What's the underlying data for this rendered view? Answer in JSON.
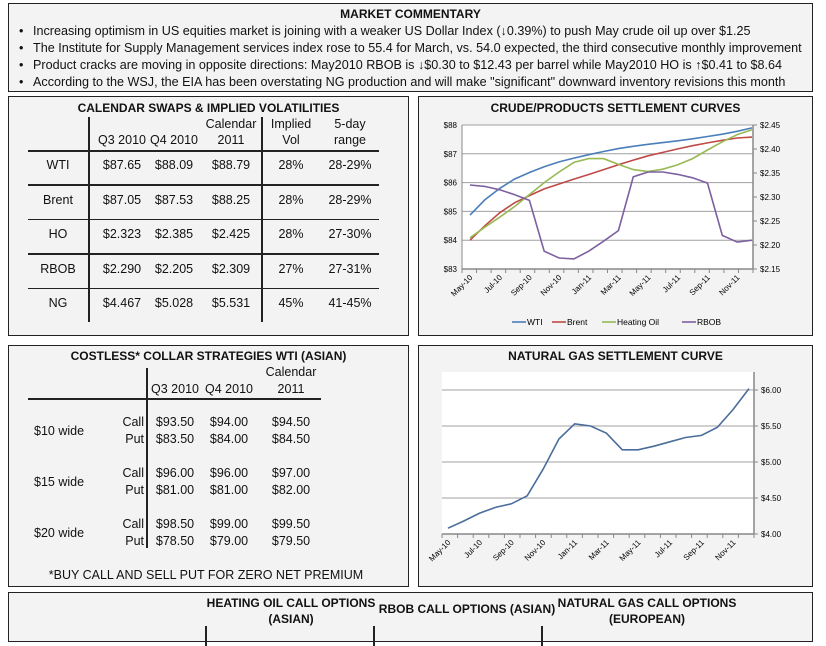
{
  "commentary": {
    "title": "MARKET COMMENTARY",
    "bullets": [
      "Increasing optimism in US equities market is joining with a weaker US Dollar Index (↓0.39%) to push May crude oil up over $1.25",
      "The Institute for Supply Management services index rose to 55.4 for March, vs. 54.0 expected, the third consecutive monthly improvement",
      "Product cracks are moving in opposite directions: May2010 RBOB is ↓$0.30 to $12.43 per barrel while May2010 HO is ↑$0.41 to $8.64",
      "According to the WSJ, the EIA has been overstating NG production and will make \"significant\" downward inventory revisions this month"
    ]
  },
  "swaps": {
    "title": "CALENDAR SWAPS & IMPLIED VOLATILITIES",
    "headers": [
      [
        "",
        "Q3 2010"
      ],
      [
        "",
        "Q4 2010"
      ],
      [
        "Calendar",
        "2011"
      ],
      [
        "Implied",
        "Vol"
      ],
      [
        "5-day",
        "range"
      ]
    ],
    "rows": [
      {
        "label": "WTI",
        "values": [
          "$87.65",
          "$88.09",
          "$88.79",
          "28%",
          "28-29%"
        ]
      },
      {
        "label": "Brent",
        "values": [
          "$87.05",
          "$87.53",
          "$88.25",
          "28%",
          "28-29%"
        ]
      },
      {
        "label": "HO",
        "values": [
          "$2.323",
          "$2.385",
          "$2.425",
          "28%",
          "27-30%"
        ]
      },
      {
        "label": "RBOB",
        "values": [
          "$2.290",
          "$2.205",
          "$2.309",
          "27%",
          "27-31%"
        ]
      },
      {
        "label": "NG",
        "values": [
          "$4.467",
          "$5.028",
          "$5.531",
          "45%",
          "41-45%"
        ]
      }
    ]
  },
  "collar": {
    "title": "COSTLESS* COLLAR STRATEGIES WTI (ASIAN)",
    "headers": [
      [
        "",
        "Q3 2010"
      ],
      [
        "",
        "Q4 2010"
      ],
      [
        "Calendar",
        "2011"
      ]
    ],
    "groups": [
      {
        "label": "$10 wide",
        "call_label": "Call",
        "put_label": "Put",
        "call": [
          "$93.50",
          "$94.00",
          "$94.50"
        ],
        "put": [
          "$83.50",
          "$84.00",
          "$84.50"
        ]
      },
      {
        "label": "$15 wide",
        "call_label": "Call",
        "put_label": "Put",
        "call": [
          "$96.00",
          "$96.00",
          "$97.00"
        ],
        "put": [
          "$81.00",
          "$81.00",
          "$82.00"
        ]
      },
      {
        "label": "$20 wide",
        "call_label": "Call",
        "put_label": "Put",
        "call": [
          "$98.50",
          "$99.00",
          "$99.50"
        ],
        "put": [
          "$78.50",
          "$79.00",
          "$79.50"
        ]
      }
    ],
    "footnote": "*BUY CALL AND SELL PUT FOR ZERO NET PREMIUM"
  },
  "options": {
    "ho_title": [
      "HEATING OIL CALL OPTIONS",
      "(ASIAN)"
    ],
    "rbob_title": [
      "RBOB CALL OPTIONS (ASIAN)"
    ],
    "ng_title": [
      "NATURAL GAS CALL OPTIONS",
      "(EUROPEAN)"
    ]
  },
  "chart_data": [
    {
      "type": "line",
      "title": "CRUDE/PRODUCTS SETTLEMENT CURVES",
      "x": [
        "May-10",
        "Jun-10",
        "Jul-10",
        "Aug-10",
        "Sep-10",
        "Oct-10",
        "Nov-10",
        "Dec-10",
        "Jan-11",
        "Feb-11",
        "Mar-11",
        "Apr-11",
        "May-11",
        "Jun-11",
        "Jul-11",
        "Aug-11",
        "Sep-11",
        "Oct-11",
        "Nov-11",
        "Dec-11"
      ],
      "x_tick_labels": [
        "May-10",
        "Jul-10",
        "Sep-10",
        "Nov-10",
        "Jan-11",
        "Mar-11",
        "May-11",
        "Jul-11",
        "Sep-11",
        "Nov-11"
      ],
      "ylim_left": [
        83,
        88
      ],
      "y_ticks_left": [
        "$83",
        "$84",
        "$85",
        "$86",
        "$87",
        "$88"
      ],
      "ylim_right": [
        2.15,
        2.45
      ],
      "y_ticks_right": [
        "$2.15",
        "$2.20",
        "$2.25",
        "$2.30",
        "$2.35",
        "$2.40",
        "$2.45"
      ],
      "grid": true,
      "legend": "bottom",
      "series": [
        {
          "name": "WTI",
          "axis": "left",
          "color": "#4a7ebb",
          "values": [
            84.87,
            85.4,
            85.8,
            86.12,
            86.35,
            86.55,
            86.72,
            86.85,
            86.97,
            87.08,
            87.18,
            87.26,
            87.33,
            87.39,
            87.45,
            87.52,
            87.6,
            87.68,
            87.78,
            87.9
          ]
        },
        {
          "name": "Brent",
          "axis": "left",
          "color": "#be4b48",
          "values": [
            84.0,
            84.5,
            84.95,
            85.3,
            85.55,
            85.78,
            85.95,
            86.12,
            86.28,
            86.45,
            86.62,
            86.78,
            86.93,
            87.05,
            87.17,
            87.28,
            87.38,
            87.47,
            87.55,
            87.58
          ]
        },
        {
          "name": "Heating Oil",
          "axis": "right",
          "color": "#98b954",
          "values": [
            2.215,
            2.237,
            2.258,
            2.28,
            2.305,
            2.33,
            2.352,
            2.372,
            2.38,
            2.38,
            2.368,
            2.357,
            2.353,
            2.358,
            2.367,
            2.38,
            2.398,
            2.415,
            2.43,
            2.44
          ]
        },
        {
          "name": "RBOB",
          "axis": "right",
          "color": "#7d60a0",
          "values": [
            2.325,
            2.322,
            2.315,
            2.305,
            2.293,
            2.187,
            2.173,
            2.171,
            2.187,
            2.208,
            2.23,
            2.342,
            2.352,
            2.352,
            2.347,
            2.34,
            2.329,
            2.22,
            2.206,
            2.21
          ]
        }
      ]
    },
    {
      "type": "line",
      "title": "NATURAL GAS SETTLEMENT CURVE",
      "x": [
        "May-10",
        "Jun-10",
        "Jul-10",
        "Aug-10",
        "Sep-10",
        "Oct-10",
        "Nov-10",
        "Dec-10",
        "Jan-11",
        "Feb-11",
        "Mar-11",
        "Apr-11",
        "May-11",
        "Jun-11",
        "Jul-11",
        "Aug-11",
        "Sep-11",
        "Oct-11",
        "Nov-11",
        "Dec-11"
      ],
      "x_tick_labels": [
        "May-10",
        "Jul-10",
        "Sep-10",
        "Nov-10",
        "Jan-11",
        "Mar-11",
        "May-11",
        "Jul-11",
        "Sep-11",
        "Nov-11"
      ],
      "ylim_right": [
        4.0,
        6.25
      ],
      "y_ticks_right": [
        "$4.00",
        "$4.50",
        "$5.00",
        "$5.50",
        "$6.00"
      ],
      "grid": true,
      "series": [
        {
          "axis": "right",
          "color": "#4a6d9a",
          "values": [
            4.08,
            4.18,
            4.29,
            4.37,
            4.42,
            4.53,
            4.9,
            5.32,
            5.53,
            5.5,
            5.4,
            5.17,
            5.17,
            5.22,
            5.28,
            5.34,
            5.37,
            5.48,
            5.73,
            6.02
          ]
        }
      ]
    }
  ]
}
